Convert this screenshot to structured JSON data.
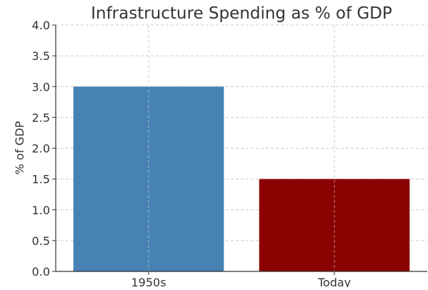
{
  "chart_data": {
    "type": "bar",
    "title": "Infrastructure Spending as % of GDP",
    "xlabel": "",
    "ylabel": "% of GDP",
    "categories": [
      "1950s",
      "Today"
    ],
    "values": [
      3.0,
      1.5
    ],
    "bar_colors": [
      "#4682b4",
      "#8b0000"
    ],
    "ylim": [
      0,
      4.0
    ],
    "yticks": [
      "0.0",
      "0.5",
      "1.0",
      "1.5",
      "2.0",
      "2.5",
      "3.0",
      "3.5",
      "4.0"
    ],
    "grid": true,
    "legend": "none"
  }
}
